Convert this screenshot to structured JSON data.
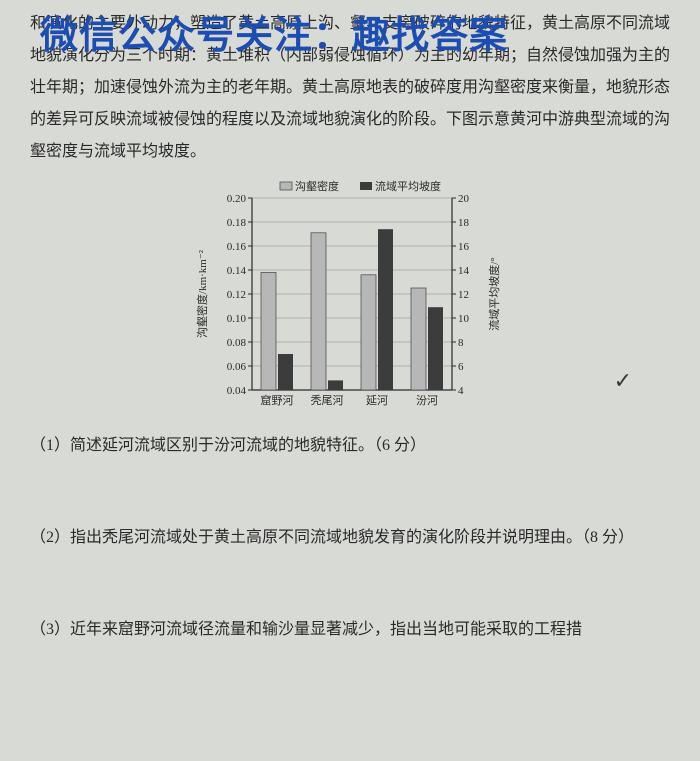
{
  "watermark": "微信公众号关注：趣找答案",
  "paragraph": "和演化的主要外动力，塑造了黄土高原上沟、壑、支离破碎的地貌特征，黄土高原不同流域地貌演化分为三个时期：黄土堆积（内部弱侵蚀循环）为主的幼年期；自然侵蚀加强为主的壮年期；加速侵蚀外流为主的老年期。黄土高原地表的破碎度用沟壑密度来衡量，地貌形态的差异可反映流域被侵蚀的程度以及流域地貌演化的阶段。下图示意黄河中游典型流域的沟壑密度与流域平均坡度。",
  "q1": "（1）简述延河流域区别于汾河流域的地貌特征。（6 分）",
  "q2": "（2）指出秃尾河流域处于黄土高原不同流域地貌发育的演化阶段并说明理由。（8 分）",
  "q3": "（3）近年来窟野河流域径流量和输沙量显著减少，指出当地可能采取的工程措",
  "chart": {
    "type": "bar",
    "legend": [
      "沟壑密度",
      "流域平均坡度"
    ],
    "categories": [
      "窟野河",
      "秃尾河",
      "延河",
      "汾河"
    ],
    "series1": [
      0.138,
      0.171,
      0.136,
      0.125
    ],
    "series2": [
      7.0,
      4.8,
      17.4,
      10.9
    ],
    "y1label": "沟壑密度/km·km⁻²",
    "y2label": "流域平均坡度/°",
    "y1lim": [
      0.04,
      0.2
    ],
    "y2lim": [
      4,
      20
    ],
    "y1ticks": [
      0.04,
      0.06,
      0.08,
      0.1,
      0.12,
      0.14,
      0.16,
      0.18,
      0.2
    ],
    "y2ticks": [
      4,
      6,
      8,
      10,
      12,
      14,
      16,
      18,
      20
    ],
    "colors": {
      "bar1_fill": "#b7b7b7",
      "bar1_stroke": "#444444",
      "bar2_fill": "#3c3c3c",
      "axis": "#2a2a2a",
      "grid": "#8a8a8a",
      "text": "#2a2a2a",
      "plot_bg": "#d8dad5"
    },
    "label_fontsize": 11,
    "tick_fontsize": 11,
    "legend_fontsize": 11
  }
}
